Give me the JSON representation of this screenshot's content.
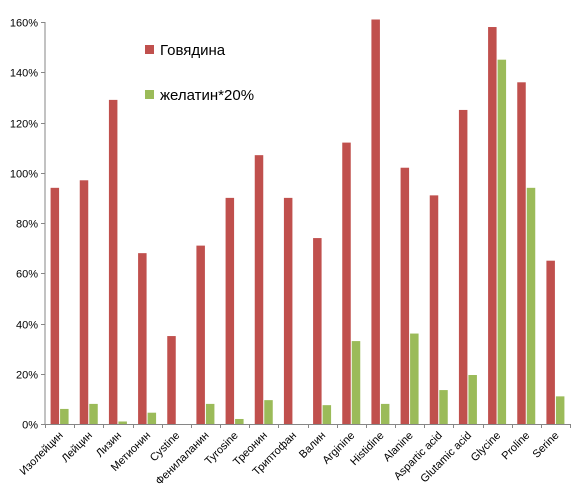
{
  "chart_data": {
    "type": "bar",
    "categories": [
      "Изолейцин",
      "Лейцин",
      "Лизин",
      "Метионин",
      "Cystine",
      "Фенилаланин",
      "Tyrosine",
      "Треонин",
      "Триптофан",
      "Валин",
      "Arginine",
      "Histidine",
      "Alanine",
      "Aspartic acid",
      "Glutamic acid",
      "Glycine",
      "Proline",
      "Serine"
    ],
    "series": [
      {
        "name": "Говядина",
        "color": "#C0504D",
        "values": [
          94,
          97,
          129,
          68,
          35,
          71,
          90,
          107,
          90,
          74,
          112,
          161,
          102,
          91,
          125,
          158,
          136,
          65
        ]
      },
      {
        "name": "желатин*20%",
        "color": "#9BBB59",
        "values": [
          6,
          8,
          1,
          4.5,
          0,
          8,
          2,
          9.5,
          0,
          7.5,
          33,
          8,
          36,
          13.5,
          19.5,
          145,
          94,
          11
        ]
      }
    ],
    "ylim": [
      0,
      160
    ],
    "yticks": [
      "0%",
      "20%",
      "40%",
      "60%",
      "80%",
      "100%",
      "120%",
      "140%",
      "160%"
    ],
    "y_tick_values": [
      0,
      20,
      40,
      60,
      80,
      100,
      120,
      140,
      160
    ],
    "grid": false,
    "legend_position": "top-left-inside"
  }
}
